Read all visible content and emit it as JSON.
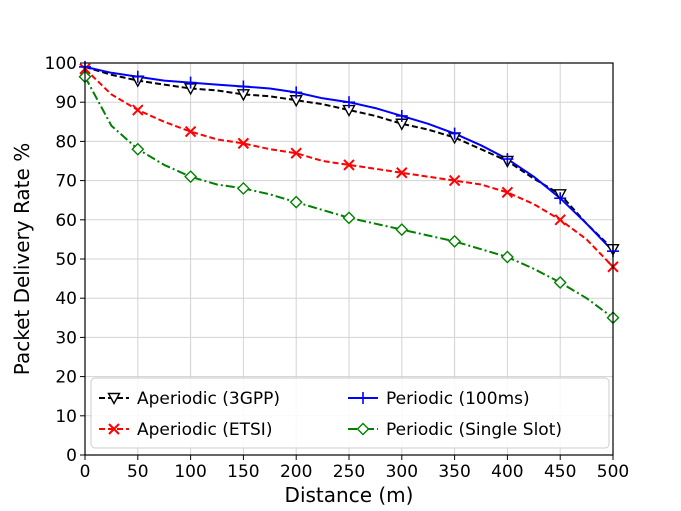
{
  "chart_data": {
    "type": "line",
    "title": "",
    "xlabel": "Distance (m)",
    "ylabel": "Packet Delivery Rate %",
    "xlim": [
      0,
      500
    ],
    "ylim": [
      0,
      100
    ],
    "xticks": [
      0,
      50,
      100,
      150,
      200,
      250,
      300,
      350,
      400,
      450,
      500
    ],
    "yticks": [
      0,
      10,
      20,
      30,
      40,
      50,
      60,
      70,
      80,
      90,
      100
    ],
    "grid": true,
    "legend_position": "lower-left",
    "series": [
      {
        "name": "Aperiodic (3GPP)",
        "color": "#000000",
        "line_style": "dashed",
        "marker": "triangle-down",
        "x": [
          0,
          25,
          50,
          75,
          100,
          125,
          150,
          175,
          200,
          225,
          250,
          275,
          300,
          325,
          350,
          375,
          400,
          425,
          450,
          475,
          500
        ],
        "y": [
          99,
          97,
          95.5,
          94.5,
          93.5,
          93,
          92,
          91.5,
          90.5,
          89.5,
          88,
          86.5,
          84.5,
          83,
          81,
          78,
          75,
          70.5,
          66.5,
          59,
          52.5
        ],
        "marker_x": [
          50,
          100,
          150,
          200,
          250,
          300,
          350,
          400,
          450,
          500
        ],
        "marker_y": [
          95.5,
          93.5,
          92,
          90.5,
          88,
          84.5,
          81,
          75,
          66.5,
          52.5
        ]
      },
      {
        "name": "Aperiodic (ETSI)",
        "color": "#ff0000",
        "line_style": "dashed",
        "marker": "x",
        "x": [
          0,
          25,
          50,
          75,
          100,
          125,
          150,
          175,
          200,
          225,
          250,
          275,
          300,
          325,
          350,
          375,
          400,
          425,
          450,
          475,
          500
        ],
        "y": [
          98.5,
          92,
          88,
          85,
          82.5,
          80.5,
          79.5,
          78,
          77,
          75,
          74,
          73,
          72,
          71,
          70,
          69,
          67,
          64,
          60,
          55,
          48
        ],
        "marker_x": [
          0,
          50,
          100,
          150,
          200,
          250,
          300,
          350,
          400,
          450,
          500
        ],
        "marker_y": [
          98.5,
          88,
          82.5,
          79.5,
          77,
          74,
          72,
          70,
          67,
          60,
          48
        ]
      },
      {
        "name": "Periodic (100ms)",
        "color": "#0000ff",
        "line_style": "solid",
        "marker": "plus",
        "x": [
          0,
          25,
          50,
          75,
          100,
          125,
          150,
          175,
          200,
          225,
          250,
          275,
          300,
          325,
          350,
          375,
          400,
          425,
          450,
          475,
          500
        ],
        "y": [
          99,
          97.5,
          96.5,
          95.5,
          95,
          94.5,
          94,
          93.5,
          92.5,
          91,
          90,
          88.5,
          86.5,
          84.5,
          82,
          79,
          75.5,
          71,
          65.5,
          59,
          52
        ],
        "marker_x": [
          0,
          50,
          100,
          150,
          200,
          250,
          300,
          350,
          400,
          450,
          500
        ],
        "marker_y": [
          99,
          96.5,
          95,
          94,
          92.5,
          90,
          86.5,
          82,
          75.5,
          65.5,
          52
        ]
      },
      {
        "name": "Periodic (Single Slot)",
        "color": "#008000",
        "line_style": "dashdot",
        "marker": "diamond",
        "x": [
          0,
          25,
          50,
          75,
          100,
          125,
          150,
          175,
          200,
          225,
          250,
          275,
          300,
          325,
          350,
          375,
          400,
          425,
          450,
          475,
          500
        ],
        "y": [
          96.5,
          84,
          78,
          74,
          71,
          69,
          68,
          66.5,
          64.5,
          62.5,
          60.5,
          59,
          57.5,
          56,
          54.5,
          52.5,
          50.5,
          47.5,
          44,
          40,
          35
        ],
        "marker_x": [
          0,
          50,
          100,
          150,
          200,
          250,
          300,
          350,
          400,
          450,
          500
        ],
        "marker_y": [
          96.5,
          78,
          71,
          68,
          64.5,
          60.5,
          57.5,
          54.5,
          50.5,
          44,
          35
        ]
      }
    ]
  }
}
